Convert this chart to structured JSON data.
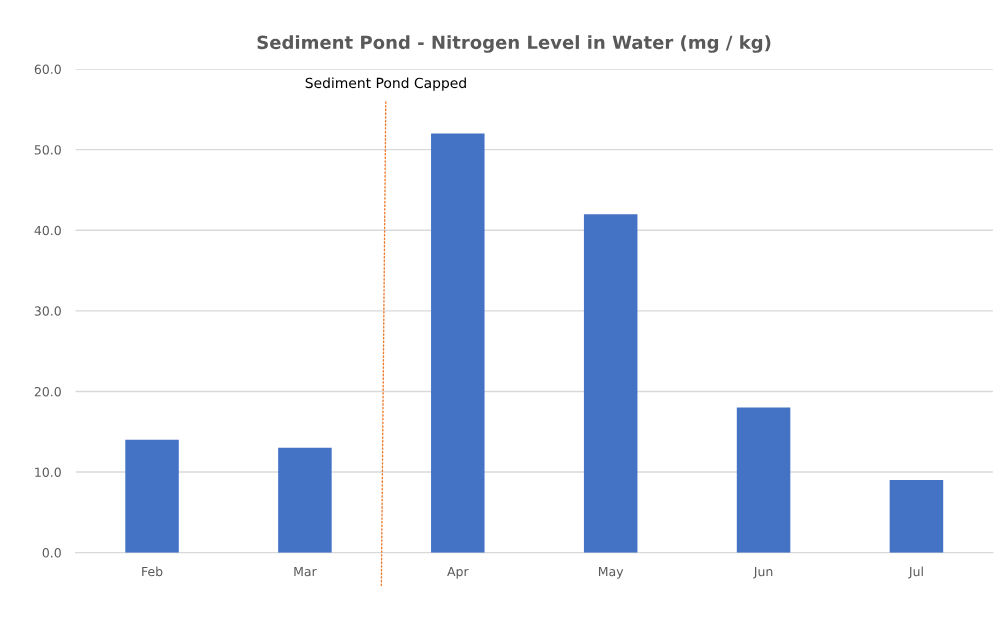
{
  "chart_data": {
    "type": "bar",
    "title": "Sediment Pond - Nitrogen Level in Water (mg / kg)",
    "categories": [
      "Feb",
      "Mar",
      "Apr",
      "May",
      "Jun",
      "Jul"
    ],
    "values": [
      14,
      13,
      52,
      42,
      18,
      9
    ],
    "color": "#4472c4",
    "ylim": [
      0,
      60
    ],
    "yticks": [
      {
        "value": 0,
        "label": "0.0"
      },
      {
        "value": 10,
        "label": "10.0"
      },
      {
        "value": 20,
        "label": "20.0"
      },
      {
        "value": 30,
        "label": "30.0"
      },
      {
        "value": 40,
        "label": "40.0"
      },
      {
        "value": 50,
        "label": "50.0"
      },
      {
        "value": 60,
        "label": "60.0"
      }
    ],
    "grid": "y",
    "annotations": [
      "Sediment Pond Capped"
    ]
  }
}
